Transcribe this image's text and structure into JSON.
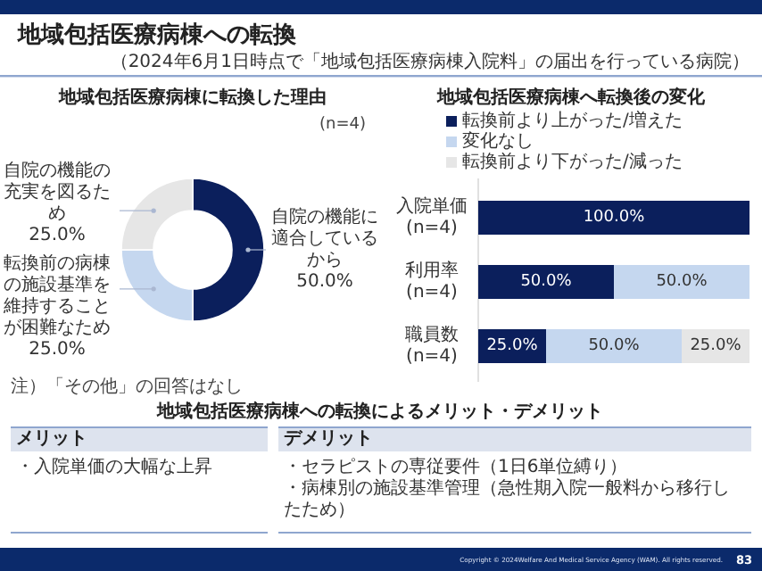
{
  "chart_data": [
    {
      "type": "other",
      "title": "地域包括医療病棟への転換",
      "subtitle": "（2024年6月1日時点で「地域包括医療病棟入院料」の届出を行っている病院）",
      "annotations": [
        "Copyright © 2024Welfare And Medical Service Agency (WAM). All rights reserved.",
        "83"
      ]
    },
    {
      "type": "donut",
      "title": "地域包括医療病棟に転換した理由",
      "categories": [
        "自院の機能に適合しているから",
        "転換前の病棟の施設基準を維持することが困難なため",
        "自院の機能の充実を図るため"
      ],
      "values": [
        50.0,
        25.0,
        25.0
      ],
      "colors": [
        "#0b1f5c",
        "#c5d7ef",
        "#e6e6e6"
      ],
      "value_labels": [
        "50.0%",
        "25.0%",
        "25.0%"
      ],
      "annotations": [
        "(n=4)",
        "注）「その他」の回答はなし"
      ]
    },
    {
      "type": "bar",
      "orientation": "horizontal",
      "stacked": true,
      "title": "地域包括医療病棟へ転換後の変化",
      "categories": [
        "入院単価(n=4)",
        "利用率(n=4)",
        "職員数(n=4)"
      ],
      "legend": "top",
      "series": [
        {
          "name": "転換前より上がった/増えた",
          "color": "#0b1f5c",
          "values": [
            100.0,
            50.0,
            25.0
          ],
          "value_labels": [
            "100.0%",
            "50.0%",
            "25.0%"
          ]
        },
        {
          "name": "変化なし",
          "color": "#c5d7ef",
          "values": [
            0,
            50.0,
            50.0
          ],
          "value_labels": [
            null,
            "50.0%",
            "50.0%"
          ]
        },
        {
          "name": "転換前より下がった/減った",
          "color": "#e6e6e6",
          "values": [
            0,
            0,
            25.0
          ],
          "value_labels": [
            null,
            null,
            "25.0%"
          ]
        }
      ]
    },
    {
      "type": "other",
      "title": "地域包括医療病棟への転換によるメリット・デメリット",
      "annotations": [
        "メリット",
        "・入院単価の大幅な上昇",
        "デメリット",
        "・セラピストの専従要件（1日6単位縛り）",
        "・病棟別の施設基準管理（急性期入院一般料から移行したため）"
      ]
    }
  ]
}
